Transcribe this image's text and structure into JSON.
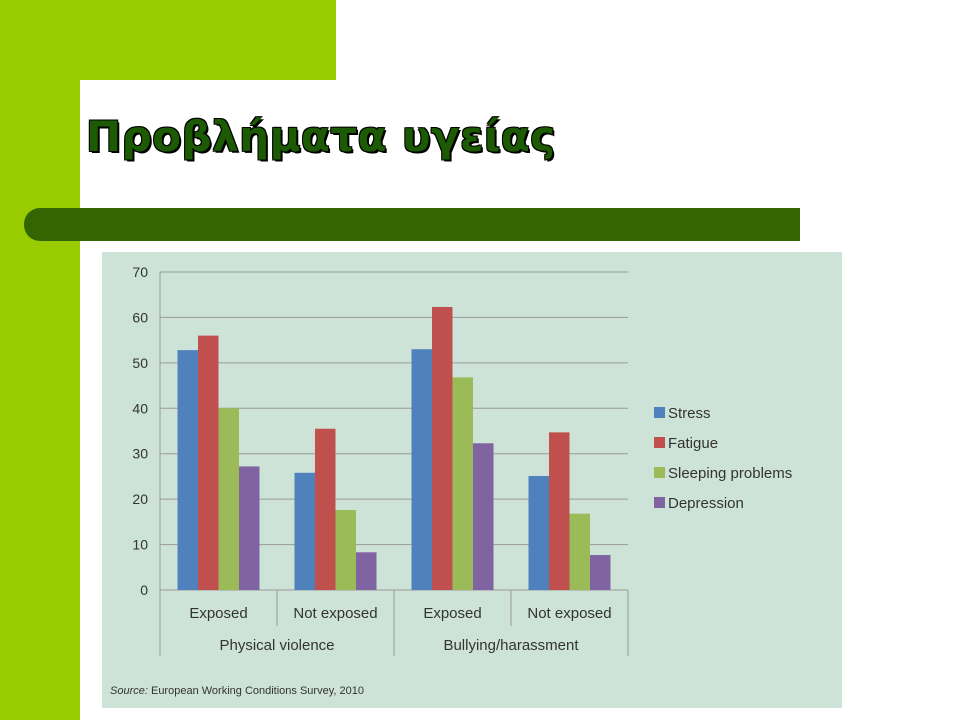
{
  "slide": {
    "title": "Προβλήματα υγείας",
    "source_label": "Source:",
    "source_text": " European Working Conditions Survey, 2010"
  },
  "colors": {
    "brand_green": "#99cc00",
    "dark_green": "#336600",
    "chart_background": "#cde3d8"
  },
  "chart_data": {
    "type": "bar",
    "categories": [
      "Exposed",
      "Not exposed",
      "Exposed",
      "Not exposed"
    ],
    "groups": [
      {
        "label": "Physical violence",
        "categories": [
          "Exposed",
          "Not exposed"
        ]
      },
      {
        "label": "Bullying/harassment",
        "categories": [
          "Exposed",
          "Not exposed"
        ]
      }
    ],
    "series": [
      {
        "name": "Stress",
        "color": "#4f81bd",
        "values": [
          52.8,
          25.8,
          53.0,
          25.1
        ]
      },
      {
        "name": "Fatigue",
        "color": "#c0504d",
        "values": [
          56.0,
          35.5,
          62.3,
          34.7
        ]
      },
      {
        "name": "Sleeping problems",
        "color": "#9bbb59",
        "values": [
          40.0,
          17.6,
          46.8,
          16.8
        ]
      },
      {
        "name": "Depression",
        "color": "#8064a2",
        "values": [
          27.2,
          8.3,
          32.3,
          7.7
        ]
      }
    ],
    "y_ticks": [
      0,
      10,
      20,
      30,
      40,
      50,
      60,
      70
    ],
    "ylim": [
      0,
      70
    ],
    "grid": true,
    "legend": "right",
    "xlabel": "",
    "ylabel": ""
  }
}
